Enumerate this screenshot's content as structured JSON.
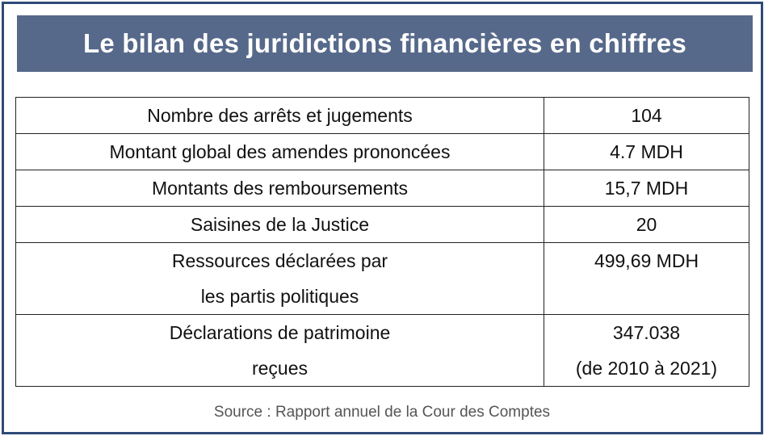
{
  "title": "Le bilan des juridictions financières en chiffres",
  "rows": [
    {
      "label_lines": [
        "Nombre des arrêts et jugements"
      ],
      "value_lines": [
        "104"
      ]
    },
    {
      "label_lines": [
        "Montant global des amendes prononcées"
      ],
      "value_lines": [
        "4.7 MDH"
      ]
    },
    {
      "label_lines": [
        "Montants des remboursements"
      ],
      "value_lines": [
        "15,7 MDH"
      ]
    },
    {
      "label_lines": [
        "Saisines de la Justice"
      ],
      "value_lines": [
        "20"
      ]
    },
    {
      "label_lines": [
        "Ressources déclarées par",
        "les partis politiques"
      ],
      "value_lines": [
        "499,69 MDH"
      ]
    },
    {
      "label_lines": [
        "Déclarations de patrimoine",
        "reçues"
      ],
      "value_lines": [
        "347.038",
        "(de 2010 à 2021)"
      ]
    }
  ],
  "source": "Source : Rapport annuel de la Cour des Comptes",
  "colors": {
    "banner": "#56698a",
    "frame": "#2f4a78"
  }
}
